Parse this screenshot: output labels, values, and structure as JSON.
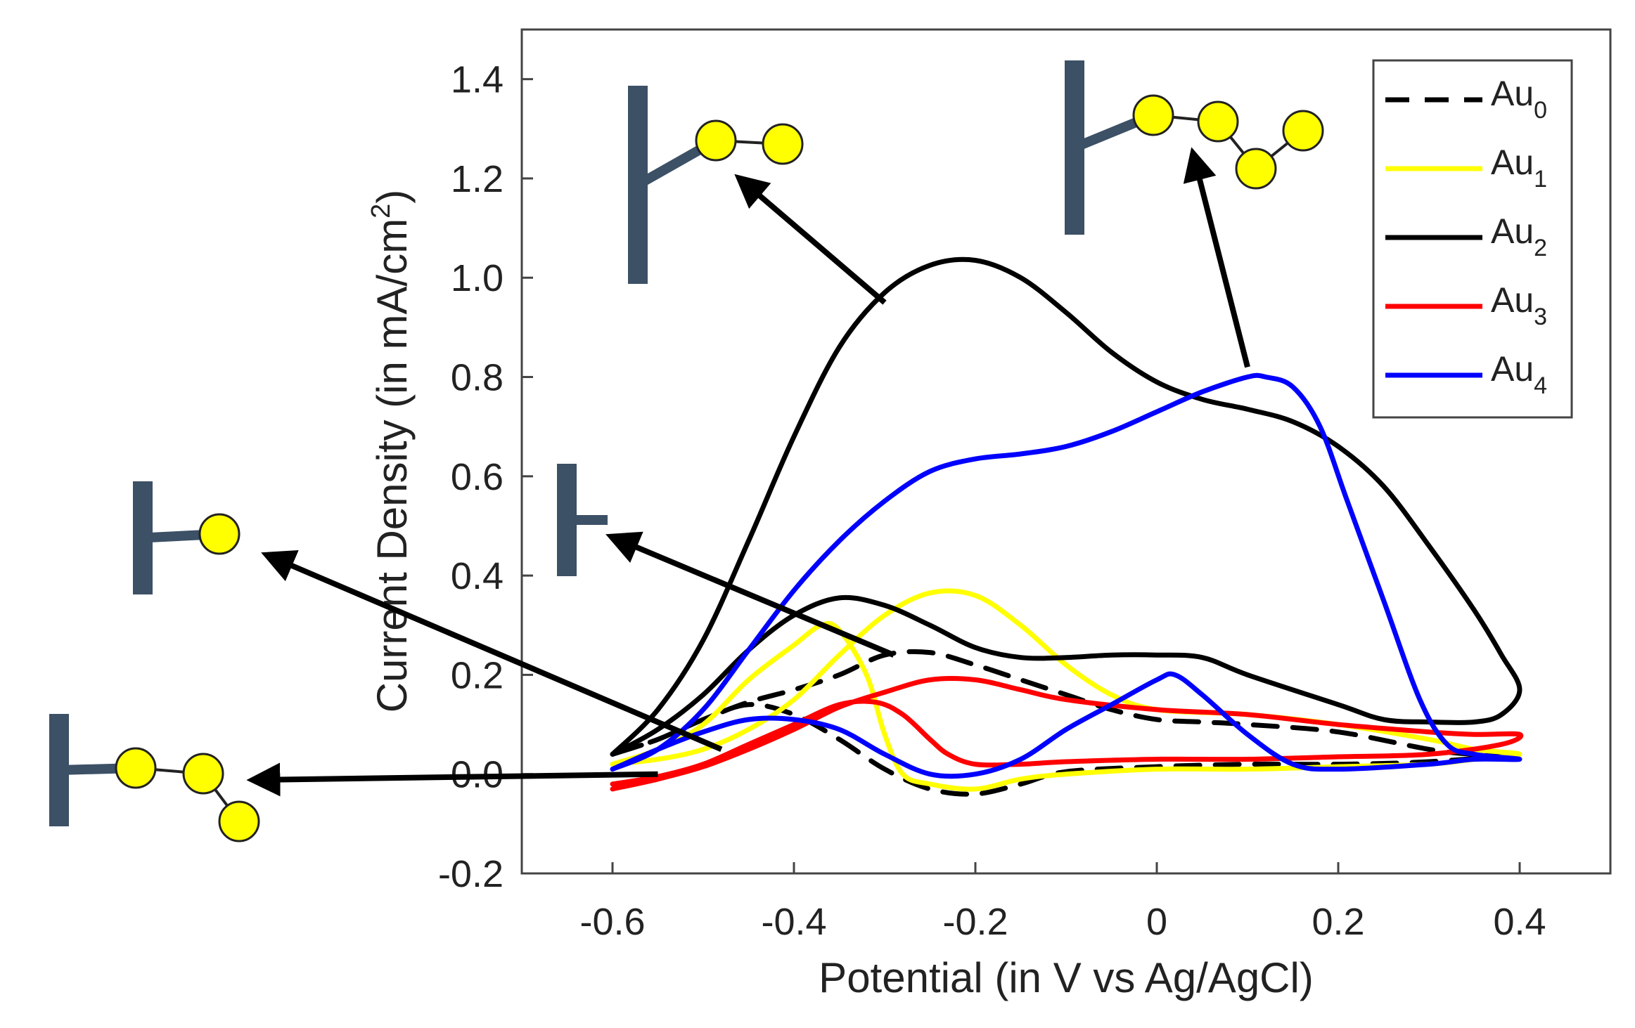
{
  "chart_data": {
    "type": "line",
    "title": "",
    "xlabel": "Potential (in V vs Ag/AgCl)",
    "ylabel_main": "Current Density (in mA/cm",
    "ylabel_sup": "2",
    "ylabel_end": ")",
    "xlim": [
      -0.7,
      0.5
    ],
    "ylim": [
      -0.2,
      1.5
    ],
    "x_ticks": [
      -0.6,
      -0.4,
      -0.2,
      0,
      0.2,
      0.4
    ],
    "x_tick_labels": [
      "-0.6",
      "-0.4",
      "-0.2",
      "0",
      "0.2",
      "0.4"
    ],
    "y_ticks": [
      -0.2,
      0,
      0.2,
      0.4,
      0.6,
      0.8,
      1.0,
      1.2,
      1.4
    ],
    "y_tick_labels": [
      "-0.2",
      "0.0",
      "0.2",
      "0.4",
      "0.6",
      "0.8",
      "1.0",
      "1.2",
      "1.4"
    ],
    "grid": false,
    "legend_position": "top-right",
    "series": [
      {
        "name": "Au",
        "sub": "0",
        "color": "#000000",
        "dash": true,
        "points": [
          [
            -0.6,
            0.04
          ],
          [
            -0.55,
            0.07
          ],
          [
            -0.5,
            0.11
          ],
          [
            -0.45,
            0.145
          ],
          [
            -0.4,
            0.17
          ],
          [
            -0.35,
            0.2
          ],
          [
            -0.3,
            0.24
          ],
          [
            -0.25,
            0.245
          ],
          [
            -0.2,
            0.22
          ],
          [
            -0.15,
            0.19
          ],
          [
            -0.1,
            0.16
          ],
          [
            -0.05,
            0.13
          ],
          [
            0,
            0.11
          ],
          [
            0.05,
            0.105
          ],
          [
            0.1,
            0.1
          ],
          [
            0.2,
            0.085
          ],
          [
            0.3,
            0.05
          ],
          [
            0.35,
            0.04
          ],
          [
            0.4,
            0.04
          ],
          [
            0.3,
            0.025
          ],
          [
            0.2,
            0.02
          ],
          [
            0.1,
            0.02
          ],
          [
            0,
            0.015
          ],
          [
            -0.1,
            0.005
          ],
          [
            -0.15,
            -0.02
          ],
          [
            -0.2,
            -0.04
          ],
          [
            -0.25,
            -0.03
          ],
          [
            -0.3,
            0.01
          ],
          [
            -0.35,
            0.07
          ],
          [
            -0.4,
            0.12
          ],
          [
            -0.45,
            0.14
          ],
          [
            -0.5,
            0.11
          ],
          [
            -0.55,
            0.07
          ],
          [
            -0.6,
            0.04
          ]
        ]
      },
      {
        "name": "Au",
        "sub": "1",
        "color": "#ffff00",
        "dash": false,
        "points": [
          [
            -0.6,
            0.02
          ],
          [
            -0.55,
            0.05
          ],
          [
            -0.5,
            0.1
          ],
          [
            -0.45,
            0.19
          ],
          [
            -0.4,
            0.26
          ],
          [
            -0.37,
            0.3
          ],
          [
            -0.35,
            0.29
          ],
          [
            -0.32,
            0.2
          ],
          [
            -0.3,
            0.08
          ],
          [
            -0.28,
            0.0
          ],
          [
            -0.25,
            -0.02
          ],
          [
            -0.2,
            -0.03
          ],
          [
            -0.15,
            -0.01
          ],
          [
            -0.1,
            0.0
          ],
          [
            0,
            0.01
          ],
          [
            0.1,
            0.01
          ],
          [
            0.2,
            0.015
          ],
          [
            0.3,
            0.02
          ],
          [
            0.35,
            0.03
          ],
          [
            0.4,
            0.04
          ],
          [
            0.35,
            0.05
          ],
          [
            0.3,
            0.07
          ],
          [
            0.2,
            0.1
          ],
          [
            0.1,
            0.12
          ],
          [
            0,
            0.13
          ],
          [
            -0.05,
            0.16
          ],
          [
            -0.1,
            0.22
          ],
          [
            -0.15,
            0.3
          ],
          [
            -0.2,
            0.36
          ],
          [
            -0.25,
            0.365
          ],
          [
            -0.3,
            0.32
          ],
          [
            -0.35,
            0.24
          ],
          [
            -0.4,
            0.15
          ],
          [
            -0.45,
            0.09
          ],
          [
            -0.5,
            0.05
          ],
          [
            -0.55,
            0.03
          ],
          [
            -0.6,
            0.02
          ]
        ]
      },
      {
        "name": "Au",
        "sub": "2",
        "color": "#000000",
        "dash": false,
        "points": [
          [
            -0.6,
            0.04
          ],
          [
            -0.55,
            0.13
          ],
          [
            -0.5,
            0.27
          ],
          [
            -0.45,
            0.47
          ],
          [
            -0.4,
            0.68
          ],
          [
            -0.35,
            0.86
          ],
          [
            -0.3,
            0.97
          ],
          [
            -0.25,
            1.025
          ],
          [
            -0.2,
            1.035
          ],
          [
            -0.15,
            1.0
          ],
          [
            -0.1,
            0.93
          ],
          [
            -0.05,
            0.85
          ],
          [
            0,
            0.79
          ],
          [
            0.05,
            0.755
          ],
          [
            0.1,
            0.735
          ],
          [
            0.15,
            0.71
          ],
          [
            0.2,
            0.66
          ],
          [
            0.25,
            0.58
          ],
          [
            0.3,
            0.46
          ],
          [
            0.35,
            0.33
          ],
          [
            0.38,
            0.24
          ],
          [
            0.4,
            0.17
          ],
          [
            0.38,
            0.12
          ],
          [
            0.35,
            0.105
          ],
          [
            0.3,
            0.105
          ],
          [
            0.25,
            0.11
          ],
          [
            0.2,
            0.14
          ],
          [
            0.1,
            0.2
          ],
          [
            0.05,
            0.235
          ],
          [
            0,
            0.24
          ],
          [
            -0.05,
            0.24
          ],
          [
            -0.1,
            0.235
          ],
          [
            -0.15,
            0.235
          ],
          [
            -0.2,
            0.255
          ],
          [
            -0.25,
            0.3
          ],
          [
            -0.3,
            0.34
          ],
          [
            -0.35,
            0.355
          ],
          [
            -0.4,
            0.32
          ],
          [
            -0.45,
            0.25
          ],
          [
            -0.5,
            0.16
          ],
          [
            -0.55,
            0.09
          ],
          [
            -0.6,
            0.04
          ]
        ]
      },
      {
        "name": "Au",
        "sub": "3",
        "color": "#ff0000",
        "dash": false,
        "points": [
          [
            -0.6,
            -0.03
          ],
          [
            -0.55,
            -0.01
          ],
          [
            -0.5,
            0.015
          ],
          [
            -0.45,
            0.05
          ],
          [
            -0.4,
            0.09
          ],
          [
            -0.35,
            0.135
          ],
          [
            -0.3,
            0.165
          ],
          [
            -0.25,
            0.19
          ],
          [
            -0.2,
            0.19
          ],
          [
            -0.15,
            0.17
          ],
          [
            -0.1,
            0.15
          ],
          [
            0,
            0.13
          ],
          [
            0.1,
            0.12
          ],
          [
            0.2,
            0.1
          ],
          [
            0.3,
            0.085
          ],
          [
            0.35,
            0.08
          ],
          [
            0.4,
            0.08
          ],
          [
            0.38,
            0.06
          ],
          [
            0.3,
            0.04
          ],
          [
            0.2,
            0.035
          ],
          [
            0.1,
            0.03
          ],
          [
            0,
            0.03
          ],
          [
            -0.1,
            0.025
          ],
          [
            -0.15,
            0.02
          ],
          [
            -0.2,
            0.02
          ],
          [
            -0.23,
            0.04
          ],
          [
            -0.25,
            0.07
          ],
          [
            -0.28,
            0.12
          ],
          [
            -0.31,
            0.145
          ],
          [
            -0.35,
            0.14
          ],
          [
            -0.4,
            0.1
          ],
          [
            -0.45,
            0.06
          ],
          [
            -0.5,
            0.02
          ],
          [
            -0.55,
            -0.005
          ],
          [
            -0.6,
            -0.02
          ]
        ]
      },
      {
        "name": "Au",
        "sub": "4",
        "color": "#0000ff",
        "dash": false,
        "points": [
          [
            -0.6,
            0.01
          ],
          [
            -0.55,
            0.05
          ],
          [
            -0.5,
            0.13
          ],
          [
            -0.45,
            0.25
          ],
          [
            -0.4,
            0.37
          ],
          [
            -0.35,
            0.47
          ],
          [
            -0.3,
            0.55
          ],
          [
            -0.25,
            0.61
          ],
          [
            -0.2,
            0.635
          ],
          [
            -0.15,
            0.645
          ],
          [
            -0.1,
            0.66
          ],
          [
            -0.05,
            0.69
          ],
          [
            0,
            0.73
          ],
          [
            0.05,
            0.77
          ],
          [
            0.1,
            0.8
          ],
          [
            0.12,
            0.8
          ],
          [
            0.15,
            0.78
          ],
          [
            0.18,
            0.7
          ],
          [
            0.21,
            0.55
          ],
          [
            0.25,
            0.35
          ],
          [
            0.29,
            0.15
          ],
          [
            0.32,
            0.06
          ],
          [
            0.35,
            0.04
          ],
          [
            0.4,
            0.03
          ],
          [
            0.35,
            0.03
          ],
          [
            0.3,
            0.02
          ],
          [
            0.2,
            0.01
          ],
          [
            0.15,
            0.02
          ],
          [
            0.1,
            0.08
          ],
          [
            0.05,
            0.16
          ],
          [
            0.02,
            0.2
          ],
          [
            0,
            0.19
          ],
          [
            -0.05,
            0.14
          ],
          [
            -0.1,
            0.09
          ],
          [
            -0.15,
            0.03
          ],
          [
            -0.2,
            0.0
          ],
          [
            -0.25,
            0.0
          ],
          [
            -0.3,
            0.04
          ],
          [
            -0.35,
            0.09
          ],
          [
            -0.4,
            0.11
          ],
          [
            -0.45,
            0.11
          ],
          [
            -0.5,
            0.085
          ],
          [
            -0.55,
            0.05
          ],
          [
            -0.6,
            0.01
          ]
        ]
      }
    ],
    "annotations": [
      {
        "label": "structure-2-beads",
        "from": [
          -0.3,
          0.95
        ],
        "to": [
          -0.46,
          1.2
        ],
        "beads": 2
      },
      {
        "label": "structure-4-beads",
        "from": [
          0.1,
          0.82
        ],
        "to": [
          0.04,
          1.25
        ],
        "beads": 4
      },
      {
        "label": "structure-1-bead",
        "from": [
          -0.48,
          0.05
        ],
        "to": [
          null,
          0.44
        ],
        "beads": 1
      },
      {
        "label": "structure-0-beads",
        "from": [
          -0.29,
          0.24
        ],
        "to": [
          -0.59,
          0.47
        ],
        "beads": 0
      },
      {
        "label": "structure-3-beads",
        "from": [
          -0.55,
          0.0
        ],
        "to": [
          null,
          -0.01
        ],
        "beads": 3
      }
    ]
  },
  "colors": {
    "bead_fill": "#ffff00",
    "bead_stroke": "#222222",
    "anchor": "#3c5066",
    "arrow": "#000000",
    "axis": "#444444"
  }
}
